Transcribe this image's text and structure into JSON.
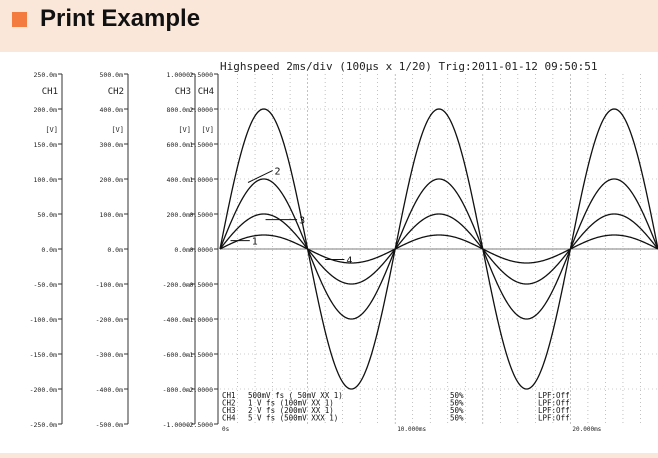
{
  "page": {
    "title": "Print Example",
    "bullet_color": "#f47b3f",
    "background_color": "#fbe7da"
  },
  "printout": {
    "header": "Highspeed  2ms/div (100µs x 1/20)   Trig:2011-01-12 09:50:51",
    "unit_labels": [
      "[V]",
      "[V]",
      "[V]",
      "[V]"
    ],
    "status": [
      {
        "channel": "CH1",
        "range": "500mV fs ( 50mV XX   1)",
        "pos": "50%",
        "lpf": "LPF:Off"
      },
      {
        "channel": "CH2",
        "range": "  1 V fs (100mV XX   1)",
        "pos": "50%",
        "lpf": "LPF:Off"
      },
      {
        "channel": "CH3",
        "range": "  2 V fs (200mV XX   1)",
        "pos": "50%",
        "lpf": "LPF:Off"
      },
      {
        "channel": "CH4",
        "range": "  5 V fs (500mV XXX  1)",
        "pos": "50%",
        "lpf": "LPF:Off"
      }
    ]
  },
  "chart_data": {
    "type": "line",
    "xlabel": "",
    "ylabel": "",
    "xlim": [
      0,
      25
    ],
    "x_ticks": [
      {
        "v": 0,
        "label": "0s"
      },
      {
        "v": 10,
        "label": "10.000ms"
      },
      {
        "v": 20,
        "label": "20.000ms"
      }
    ],
    "grid": true,
    "axes": [
      {
        "name": "CH1",
        "ticks": [
          "250.0m",
          "200.0m",
          "150.0m",
          "100.0m",
          "50.0m",
          "0.0m",
          "-50.0m",
          "-100.0m",
          "-150.0m",
          "-200.0m",
          "-250.0m"
        ]
      },
      {
        "name": "CH2",
        "ticks": [
          "500.0m",
          "400.0m",
          "300.0m",
          "200.0m",
          "100.0m",
          "0.0m",
          "-100.0m",
          "-200.0m",
          "-300.0m",
          "-400.0m",
          "-500.0m"
        ]
      },
      {
        "name": "CH3",
        "ticks": [
          "1.0000",
          "800.0m",
          "600.0m",
          "400.0m",
          "200.0m",
          "0.0m",
          "-200.0m",
          "-400.0m",
          "-600.0m",
          "-800.0m",
          "-1.0000"
        ]
      },
      {
        "name": "CH4",
        "ticks": [
          "2.5000",
          "2.0000",
          "1.5000",
          "1.0000",
          "0.5000",
          "0.0000",
          "-0.5000",
          "-1.0000",
          "-1.5000",
          "-2.0000",
          "-2.5000"
        ]
      }
    ],
    "ylim": [
      -2.5,
      2.5
    ],
    "period_ms": 10,
    "series": [
      {
        "name": "1",
        "amplitude": 0.2
      },
      {
        "name": "2",
        "amplitude": 1.0
      },
      {
        "name": "3",
        "amplitude": 0.5
      },
      {
        "name": "4",
        "amplitude": 2.0
      }
    ],
    "trace_labels": [
      "1",
      "2",
      "3",
      "4"
    ]
  }
}
